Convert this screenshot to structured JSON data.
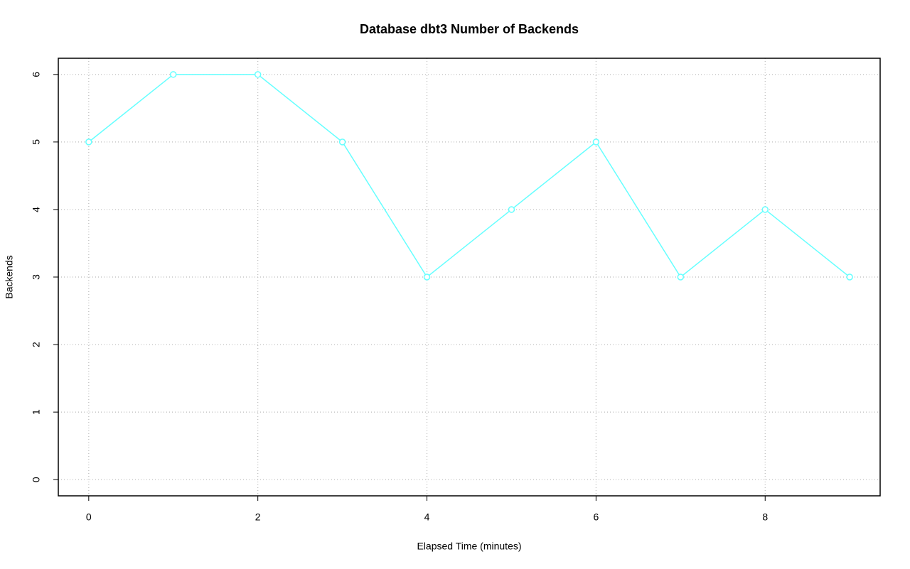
{
  "chart_data": {
    "type": "line",
    "title": "Database dbt3 Number of Backends",
    "xlabel": "Elapsed Time (minutes)",
    "ylabel": "Backends",
    "x": [
      0,
      1,
      2,
      3,
      4,
      5,
      6,
      7,
      8,
      9
    ],
    "series": [
      {
        "name": "Backends",
        "color": "#66ffff",
        "values": [
          5,
          6,
          6,
          5,
          3,
          4,
          5,
          3,
          4,
          3
        ]
      }
    ],
    "xlim": [
      -0.36,
      9.36
    ],
    "ylim": [
      -0.24,
      6.24
    ],
    "xticks": [
      0,
      2,
      4,
      6,
      8
    ],
    "yticks": [
      0,
      1,
      2,
      3,
      4,
      5,
      6
    ],
    "grid": true
  }
}
